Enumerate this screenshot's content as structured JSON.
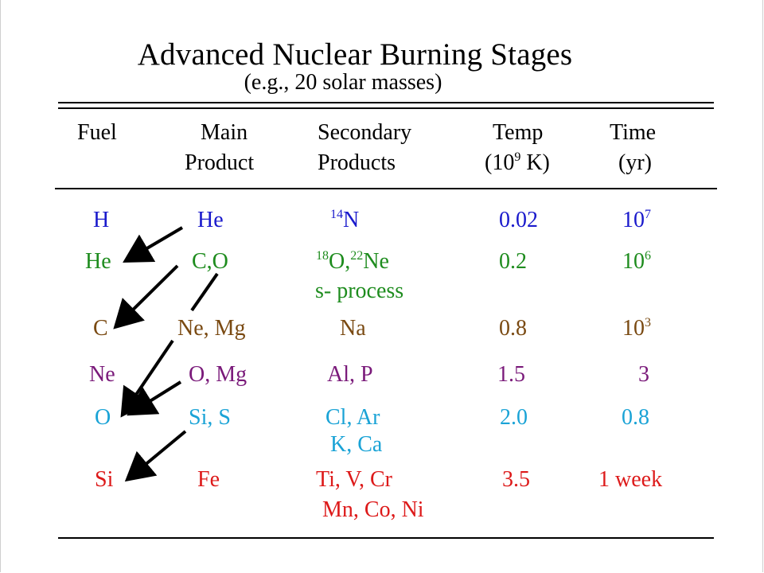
{
  "title": "Advanced Nuclear Burning Stages",
  "subtitle": "(e.g., 20 solar masses)",
  "headers": {
    "fuel": "Fuel",
    "main_1": "Main",
    "main_2": "Product",
    "secondary_1": "Secondary",
    "secondary_2": "Products",
    "temp_1": "Temp",
    "temp_2_pre": "(10",
    "temp_2_exp": "9",
    "temp_2_post": " K)",
    "time_1": "Time",
    "time_2": "(yr)"
  },
  "colors": {
    "H": "#1a1acc",
    "He": "#1e8c1e",
    "C": "#7a4a12",
    "Ne": "#7a1a7a",
    "O": "#1aa3d6",
    "Si": "#dd1a1a",
    "arrow": "#000000"
  },
  "rows": [
    {
      "fuel": "H",
      "main": "He",
      "sec1_sup": "14",
      "sec1": "N",
      "sec1b_sup": "",
      "sec1b": "",
      "sec2": "",
      "temp": "0.02",
      "time_base": "10",
      "time_exp": "7"
    },
    {
      "fuel": "He",
      "main": "C,O",
      "sec1_sup": "18",
      "sec1": "O,",
      "sec1b_sup": "22",
      "sec1b": "Ne",
      "sec2": "s- process",
      "temp": "0.2",
      "time_base": "10",
      "time_exp": "6"
    },
    {
      "fuel": "C",
      "main": "Ne, Mg",
      "sec1_sup": "",
      "sec1": "Na",
      "sec1b_sup": "",
      "sec1b": "",
      "sec2": "",
      "temp": "0.8",
      "time_base": "10",
      "time_exp": "3"
    },
    {
      "fuel": "Ne",
      "main": "O, Mg",
      "sec1_sup": "",
      "sec1": "Al, P",
      "sec1b_sup": "",
      "sec1b": "",
      "sec2": "",
      "temp": "1.5",
      "time_base": "3",
      "time_exp": ""
    },
    {
      "fuel": "O",
      "main": "Si, S",
      "sec1_sup": "",
      "sec1": "Cl, Ar",
      "sec1b_sup": "",
      "sec1b": "",
      "sec2": "K, Ca",
      "temp": "2.0",
      "time_base": "0.8",
      "time_exp": ""
    },
    {
      "fuel": "Si",
      "main": "Fe",
      "sec1_sup": "",
      "sec1": "Ti, V, Cr",
      "sec1b_sup": "",
      "sec1b": "",
      "sec2": "Mn, Co, Ni",
      "temp": "3.5",
      "time_base": "1 week",
      "time_exp": ""
    }
  ]
}
